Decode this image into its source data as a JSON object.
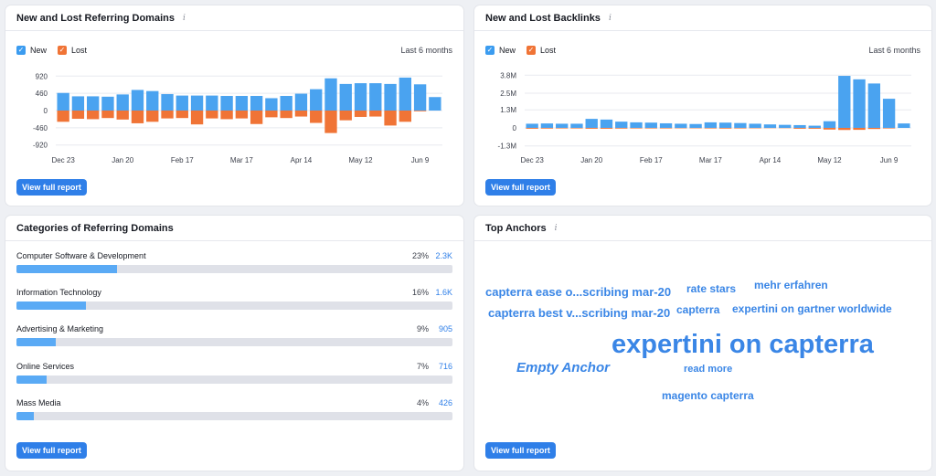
{
  "referring_domains": {
    "title": "New and Lost Referring Domains",
    "info_icon": "info-icon",
    "legend": {
      "new": "New",
      "lost": "Lost"
    },
    "period": "Last 6 months",
    "button": "View full report",
    "colors": {
      "new": "#4aa3f0",
      "lost": "#f07436",
      "check_new": "#3b9cf0",
      "check_lost": "#f07436"
    }
  },
  "backlinks": {
    "title": "New and Lost Backlinks",
    "info_icon": "info-icon",
    "legend": {
      "new": "New",
      "lost": "Lost"
    },
    "period": "Last 6 months",
    "button": "View full report"
  },
  "categories": {
    "title": "Categories of Referring Domains",
    "button": "View full report",
    "items": [
      {
        "name": "Computer Software & Development",
        "percent": "23%",
        "count": "2.3K",
        "fraction": 0.23
      },
      {
        "name": "Information Technology",
        "percent": "16%",
        "count": "1.6K",
        "fraction": 0.16
      },
      {
        "name": "Advertising & Marketing",
        "percent": "9%",
        "count": "905",
        "fraction": 0.09
      },
      {
        "name": "Online Services",
        "percent": "7%",
        "count": "716",
        "fraction": 0.07
      },
      {
        "name": "Mass Media",
        "percent": "4%",
        "count": "426",
        "fraction": 0.04
      }
    ]
  },
  "anchors": {
    "title": "Top Anchors",
    "info_icon": "info-icon",
    "button": "View full report",
    "items": [
      {
        "text": "capterra ease o...scribing mar-20",
        "weight": "medium"
      },
      {
        "text": "rate stars",
        "weight": "medium"
      },
      {
        "text": "mehr erfahren",
        "weight": "medium"
      },
      {
        "text": "capterra best v...scribing mar-20",
        "weight": "medium"
      },
      {
        "text": "capterra",
        "weight": "medium"
      },
      {
        "text": "expertini on gartner worldwide",
        "weight": "medium"
      },
      {
        "text": "expertini on capterra",
        "weight": "large"
      },
      {
        "text": "Empty Anchor",
        "weight": "medium-italic"
      },
      {
        "text": "read more",
        "weight": "small"
      },
      {
        "text": "magento capterra",
        "weight": "medium"
      }
    ]
  },
  "chart_data": [
    {
      "type": "bar",
      "title": "New and Lost Referring Domains",
      "y_ticks": [
        "920",
        "460",
        "0",
        "-460",
        "-920"
      ],
      "x_ticks": [
        "Dec 23",
        "Jan 20",
        "Feb 17",
        "Mar 17",
        "Apr 14",
        "May 12",
        "Jun 9"
      ],
      "ylim": [
        -1000,
        1000
      ],
      "series": [
        {
          "name": "New",
          "values": [
            470,
            380,
            380,
            370,
            430,
            550,
            520,
            440,
            400,
            400,
            400,
            390,
            390,
            390,
            330,
            390,
            450,
            570,
            860,
            710,
            730,
            730,
            710,
            880,
            700,
            360
          ]
        },
        {
          "name": "Lost",
          "values": [
            -300,
            -220,
            -230,
            -200,
            -240,
            -340,
            -300,
            -210,
            -200,
            -370,
            -210,
            -230,
            -210,
            -360,
            -180,
            -200,
            -160,
            -330,
            -600,
            -260,
            -170,
            -160,
            -400,
            -300,
            -20,
            0
          ]
        }
      ]
    },
    {
      "type": "bar",
      "title": "New and Lost Backlinks",
      "y_ticks": [
        "3.8M",
        "2.5M",
        "1.3M",
        "0",
        "-1.3M"
      ],
      "x_ticks": [
        "Dec 23",
        "Jan 20",
        "Feb 17",
        "Mar 17",
        "Apr 14",
        "May 12",
        "Jun 9"
      ],
      "ylim": [
        -1300000,
        3800000
      ],
      "series": [
        {
          "name": "New",
          "values": [
            300000,
            320000,
            300000,
            300000,
            650000,
            600000,
            450000,
            400000,
            380000,
            330000,
            300000,
            280000,
            400000,
            380000,
            350000,
            300000,
            250000,
            220000,
            200000,
            160000,
            480000,
            3750000,
            3500000,
            3200000,
            2100000,
            320000
          ]
        },
        {
          "name": "Lost",
          "values": [
            -60000,
            -50000,
            -40000,
            -40000,
            -60000,
            -60000,
            -50000,
            -40000,
            -40000,
            -40000,
            -30000,
            -30000,
            -40000,
            -50000,
            -40000,
            -30000,
            -20000,
            -20000,
            -60000,
            -60000,
            -120000,
            -150000,
            -140000,
            -80000,
            -40000,
            0
          ]
        }
      ]
    }
  ]
}
